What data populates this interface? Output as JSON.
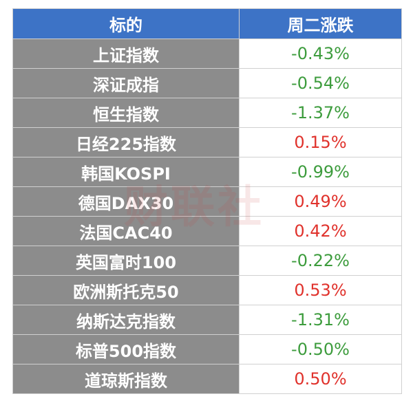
{
  "table": {
    "header": [
      "标的",
      "周二涨跌"
    ],
    "rows": [
      [
        "上证指数",
        "-0.43%"
      ],
      [
        "深证成指",
        "-0.54%"
      ],
      [
        "恒生指数",
        "-1.37%"
      ],
      [
        "日经225指数",
        "0.15%"
      ],
      [
        "韩国KOSPI",
        "-0.99%"
      ],
      [
        "德国DAX30",
        "0.49%"
      ],
      [
        "法国CAC40",
        "0.42%"
      ],
      [
        "英国富时100",
        "-0.22%"
      ],
      [
        "欧洲斯托克50",
        "0.53%"
      ],
      [
        "纳斯达克指数",
        "-1.31%"
      ],
      [
        "标普500指数",
        "-0.50%"
      ],
      [
        "道琼斯指数",
        "0.50%"
      ]
    ],
    "colors": {
      "up": "#e0322c",
      "down": "#3d9c3d"
    }
  },
  "watermark": "财联社"
}
